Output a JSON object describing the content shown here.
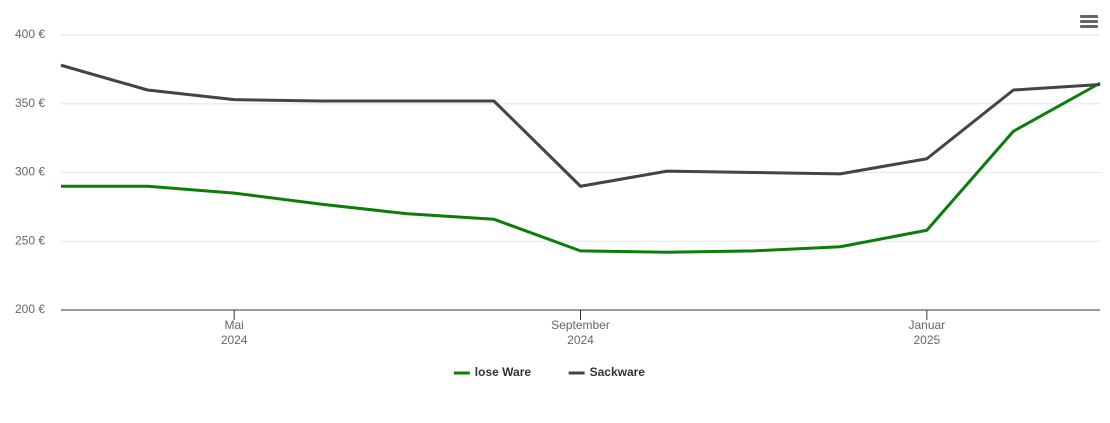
{
  "chart_data": {
    "type": "line",
    "x": [
      "2024-03",
      "2024-04",
      "2024-05",
      "2024-06",
      "2024-07",
      "2024-08",
      "2024-09",
      "2024-10",
      "2024-11",
      "2024-12",
      "2025-01",
      "2025-02",
      "2025-03"
    ],
    "series": [
      {
        "name": "lose Ware",
        "color": "#0b7d0b",
        "values": [
          290,
          290,
          285,
          277,
          270,
          266,
          243,
          242,
          243,
          246,
          258,
          330,
          365
        ]
      },
      {
        "name": "Sackware",
        "color": "#434348",
        "values": [
          378,
          360,
          353,
          352,
          352,
          352,
          290,
          301,
          300,
          299,
          310,
          360,
          364
        ]
      }
    ],
    "xlim": [
      "2024-03",
      "2025-03"
    ],
    "xticks": [
      {
        "value": "2024-05",
        "label": [
          "Mai",
          "2024"
        ]
      },
      {
        "value": "2024-09",
        "label": [
          "September",
          "2024"
        ]
      },
      {
        "value": "2025-01",
        "label": [
          "Januar",
          "2025"
        ]
      }
    ],
    "ylim": [
      200,
      400
    ],
    "yticks": [
      {
        "value": 200,
        "label": "200 €"
      },
      {
        "value": 250,
        "label": "250 €"
      },
      {
        "value": 300,
        "label": "300 €"
      },
      {
        "value": 350,
        "label": "350 €"
      },
      {
        "value": 400,
        "label": "400 €"
      }
    ],
    "grid": true,
    "legend": "bottom"
  }
}
